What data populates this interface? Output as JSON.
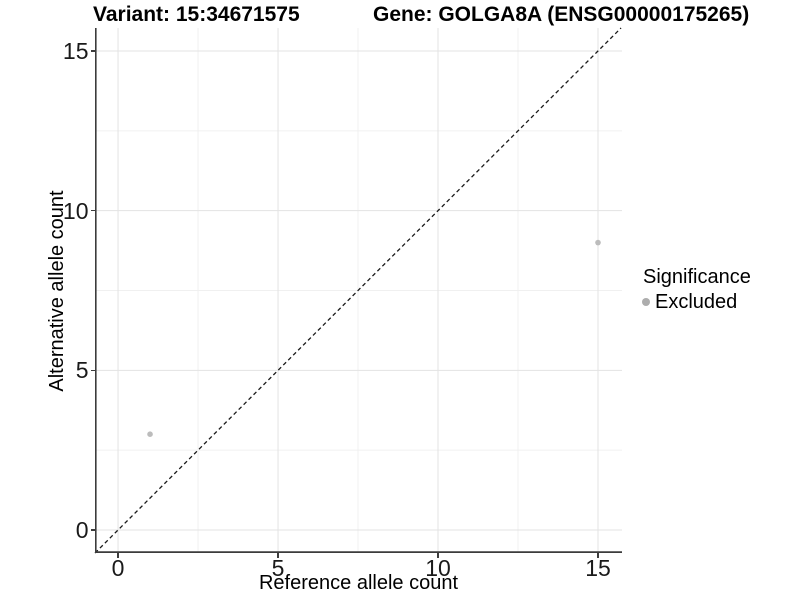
{
  "chart_data": {
    "type": "scatter",
    "titles": {
      "left": "Variant: 15:34671575",
      "right": "Gene: GOLGA8A (ENSG00000175265)"
    },
    "xlabel": "Reference allele count",
    "ylabel": "Alternative allele count",
    "xlim": [
      -0.72,
      15.75
    ],
    "ylim": [
      -0.72,
      15.72
    ],
    "x_ticks": [
      0,
      5,
      10,
      15
    ],
    "y_ticks": [
      0,
      5,
      10,
      15
    ],
    "x_minor_ticks": [
      2.5,
      7.5,
      12.5
    ],
    "y_minor_ticks": [
      2.5,
      7.5,
      12.5
    ],
    "grid": true,
    "identity_line": {
      "equation": "y = x",
      "style": "dashed"
    },
    "series": [
      {
        "name": "Excluded",
        "color": "#bcbcbc",
        "points": [
          {
            "x": 1,
            "y": 3
          },
          {
            "x": 15,
            "y": 9
          }
        ]
      }
    ],
    "legend": {
      "title": "Significance",
      "position": "right",
      "entries": [
        {
          "label": "Excluded",
          "color": "#adadad"
        }
      ]
    },
    "colors": {
      "background": "#ffffff",
      "grid_major": "#e3e3e3",
      "grid_minor": "#f0f0f0",
      "axis_line": "#3c3c3c",
      "tick_mark": "#3c3c3c",
      "identity_line": "#1a1a1a",
      "text": "#000000"
    }
  }
}
